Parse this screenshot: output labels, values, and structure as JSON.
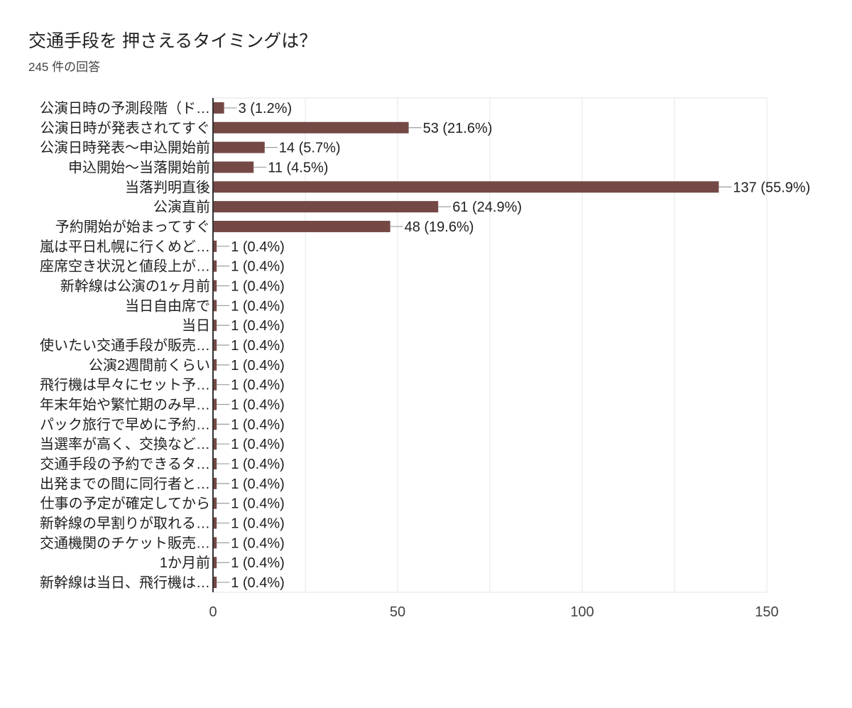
{
  "header": {
    "title": "交通手段を 押さえるタイミングは？",
    "subtitle": "245 件の回答"
  },
  "colors": {
    "bar": "#744945",
    "grid": "#eeeeee",
    "axis": "#333333",
    "leader": "#9e9e9e"
  },
  "chart_data": {
    "type": "bar",
    "orientation": "horizontal",
    "categories": [
      "公演日時の予測段階（ド…",
      "公演日時が発表されてすぐ",
      "公演日時発表～申込開始前",
      "申込開始～当落開始前",
      "当落判明直後",
      "公演直前",
      "予約開始が始まってすぐ",
      "嵐は平日札幌に行くめど…",
      "座席空き状況と値段上が…",
      "新幹線は公演の1ヶ月前",
      "当日自由席で",
      "当日",
      "使いたい交通手段が販売…",
      "公演2週間前くらい",
      "飛行機は早々にセット予…",
      "年末年始や繁忙期のみ早…",
      "パック旅行で早めに予約…",
      "当選率が高く、交換など…",
      "交通手段の予約できるタ…",
      "出発までの間に同行者と…",
      "仕事の予定が確定してから",
      "新幹線の早割りが取れる…",
      "交通機関のチケット販売…",
      "1か月前",
      "新幹線は当日、飛行機は…"
    ],
    "values": [
      3,
      53,
      14,
      11,
      137,
      61,
      48,
      1,
      1,
      1,
      1,
      1,
      1,
      1,
      1,
      1,
      1,
      1,
      1,
      1,
      1,
      1,
      1,
      1,
      1
    ],
    "value_labels": [
      "3 (1.2%)",
      "53 (21.6%)",
      "14 (5.7%)",
      "11 (4.5%)",
      "137 (55.9%)",
      "61 (24.9%)",
      "48 (19.6%)",
      "1 (0.4%)",
      "1 (0.4%)",
      "1 (0.4%)",
      "1 (0.4%)",
      "1 (0.4%)",
      "1 (0.4%)",
      "1 (0.4%)",
      "1 (0.4%)",
      "1 (0.4%)",
      "1 (0.4%)",
      "1 (0.4%)",
      "1 (0.4%)",
      "1 (0.4%)",
      "1 (0.4%)",
      "1 (0.4%)",
      "1 (0.4%)",
      "1 (0.4%)",
      "1 (0.4%)"
    ],
    "xlim": [
      0,
      150
    ],
    "xticks": [
      0,
      50,
      100,
      150
    ],
    "grid": true
  }
}
